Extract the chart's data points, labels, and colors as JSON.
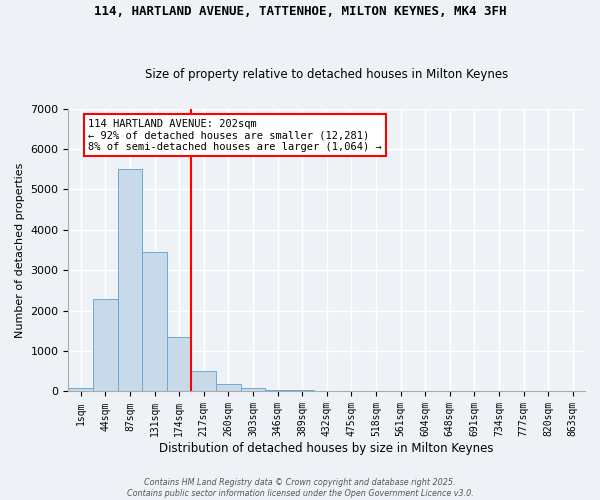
{
  "title": "114, HARTLAND AVENUE, TATTENHOE, MILTON KEYNES, MK4 3FH",
  "subtitle": "Size of property relative to detached houses in Milton Keynes",
  "xlabel": "Distribution of detached houses by size in Milton Keynes",
  "ylabel": "Number of detached properties",
  "categories": [
    "1sqm",
    "44sqm",
    "87sqm",
    "131sqm",
    "174sqm",
    "217sqm",
    "260sqm",
    "303sqm",
    "346sqm",
    "389sqm",
    "432sqm",
    "475sqm",
    "518sqm",
    "561sqm",
    "604sqm",
    "648sqm",
    "691sqm",
    "734sqm",
    "777sqm",
    "820sqm",
    "863sqm"
  ],
  "values": [
    80,
    2300,
    5500,
    3450,
    1350,
    500,
    175,
    90,
    45,
    30,
    15,
    8,
    5,
    3,
    2,
    1,
    1,
    0,
    0,
    0,
    0
  ],
  "bar_color": "#c8d9ea",
  "bar_edge_color": "#6aaad4",
  "red_line_x": 4.5,
  "annotation_text": "114 HARTLAND AVENUE: 202sqm\n← 92% of detached houses are smaller (12,281)\n8% of semi-detached houses are larger (1,064) →",
  "ylim": [
    0,
    7000
  ],
  "yticks": [
    0,
    1000,
    2000,
    3000,
    4000,
    5000,
    6000,
    7000
  ],
  "bg_color": "#eef2f7",
  "grid_color": "#ffffff",
  "footer_line1": "Contains HM Land Registry data © Crown copyright and database right 2025.",
  "footer_line2": "Contains public sector information licensed under the Open Government Licence v3.0."
}
